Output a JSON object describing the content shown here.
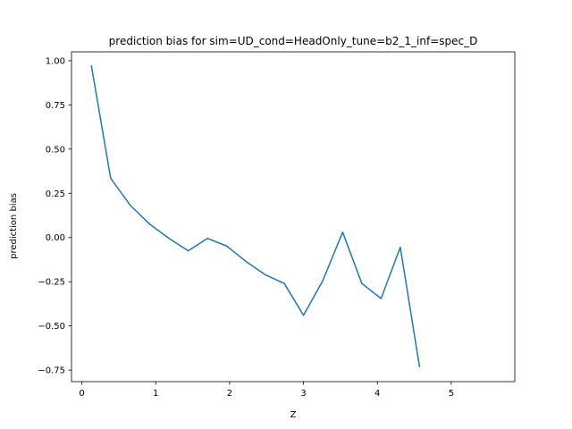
{
  "chart_data": {
    "type": "line",
    "title": "prediction bias for sim=UD_cond=HeadOnly_tune=b2_1_inf=spec_D",
    "xlabel": "Z",
    "ylabel": "prediction bias",
    "xlim": [
      -0.14,
      5.86
    ],
    "ylim": [
      -0.815,
      1.05
    ],
    "xticks": [
      0,
      1,
      2,
      3,
      4,
      5
    ],
    "yticks": [
      -0.75,
      -0.5,
      -0.25,
      0.0,
      0.25,
      0.5,
      0.75,
      1.0
    ],
    "xtick_labels": [
      "0",
      "1",
      "2",
      "3",
      "4",
      "5"
    ],
    "ytick_labels": [
      "−0.75",
      "−0.50",
      "−0.25",
      "0.00",
      "0.25",
      "0.50",
      "0.75",
      "1.00"
    ],
    "grid": false,
    "series": [
      {
        "color": "#1f77b4",
        "x": [
          0.13,
          0.39,
          0.66,
          0.92,
          1.18,
          1.44,
          1.7,
          1.96,
          2.22,
          2.48,
          2.74,
          3.0,
          3.26,
          3.53,
          3.79,
          4.05,
          4.31,
          4.57
        ],
        "y": [
          0.97,
          0.335,
          0.18,
          0.075,
          -0.005,
          -0.075,
          -0.005,
          -0.048,
          -0.135,
          -0.21,
          -0.26,
          -0.44,
          -0.245,
          0.03,
          -0.26,
          -0.345,
          -0.055,
          -0.73
        ]
      }
    ]
  }
}
